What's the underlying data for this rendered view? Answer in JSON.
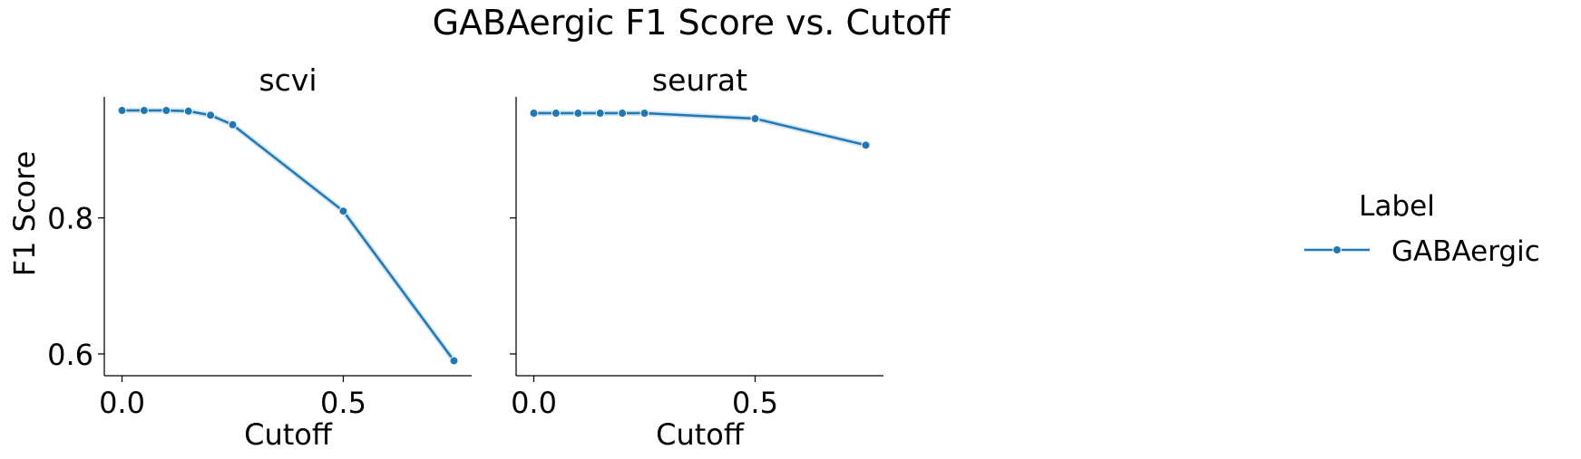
{
  "figure": {
    "title": "GABAergic F1 Score vs. Cutoff",
    "ylabel": "F1 Score",
    "legend_title": "Label",
    "legend_position": "right"
  },
  "chart_data": [
    {
      "type": "line",
      "title": "scvi",
      "xlabel": "Cutoff",
      "ylabel": "F1 Score",
      "xlim": [
        -0.04,
        0.79
      ],
      "ylim": [
        0.568,
        0.978
      ],
      "xticks": [
        0.0,
        0.5
      ],
      "xtick_labels": [
        "0.0",
        "0.5"
      ],
      "yticks": [
        0.6,
        0.8
      ],
      "ytick_labels": [
        "0.6",
        "0.8"
      ],
      "grid": false,
      "series": [
        {
          "name": "GABAergic",
          "color": "#1f77b4",
          "x": [
            0.0,
            0.05,
            0.1,
            0.15,
            0.2,
            0.25,
            0.5,
            0.75
          ],
          "y": [
            0.958,
            0.958,
            0.958,
            0.957,
            0.951,
            0.937,
            0.81,
            0.59
          ]
        }
      ]
    },
    {
      "type": "line",
      "title": "seurat",
      "xlabel": "Cutoff",
      "ylabel": "",
      "xlim": [
        -0.04,
        0.79
      ],
      "ylim": [
        0.568,
        0.978
      ],
      "xticks": [
        0.0,
        0.5
      ],
      "xtick_labels": [
        "0.0",
        "0.5"
      ],
      "yticks": [
        0.6,
        0.8
      ],
      "ytick_labels": [
        "",
        ""
      ],
      "grid": false,
      "series": [
        {
          "name": "GABAergic",
          "color": "#1f77b4",
          "x": [
            0.0,
            0.05,
            0.1,
            0.15,
            0.2,
            0.25,
            0.5,
            0.75
          ],
          "y": [
            0.954,
            0.954,
            0.954,
            0.954,
            0.954,
            0.954,
            0.946,
            0.907
          ]
        }
      ]
    }
  ]
}
